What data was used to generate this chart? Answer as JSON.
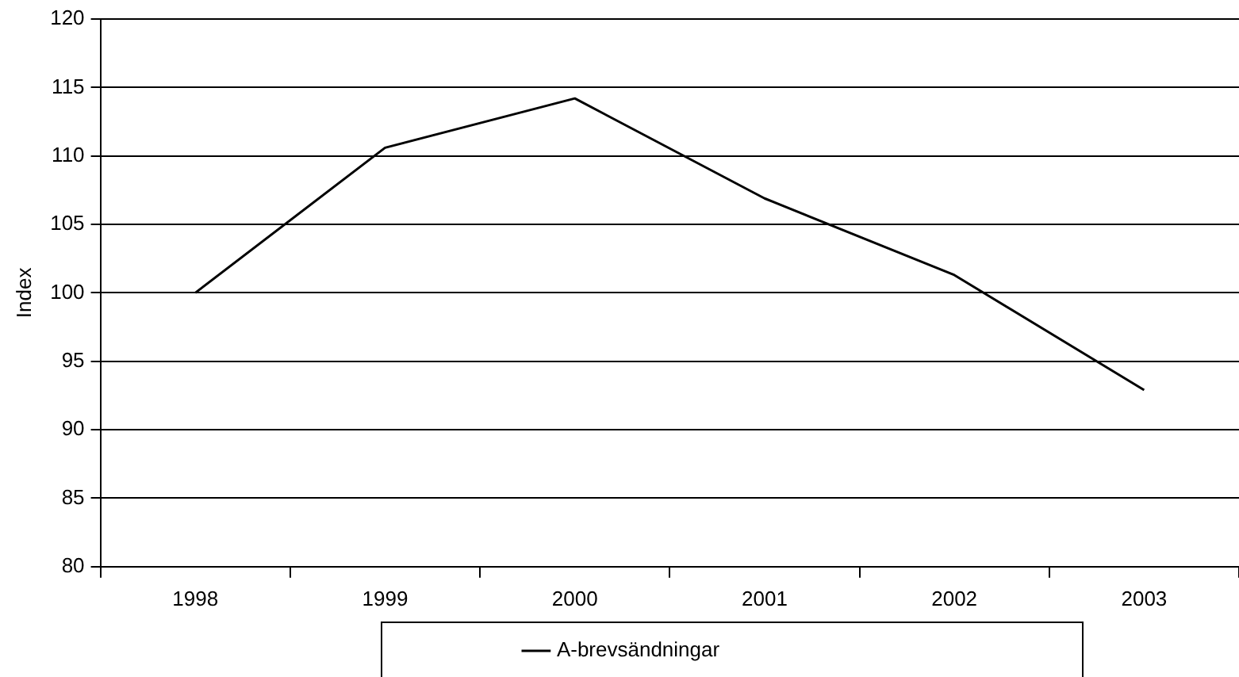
{
  "chart_data": {
    "type": "line",
    "ylabel": "Index",
    "categories": [
      "1998",
      "1999",
      "2000",
      "2001",
      "2002",
      "2003"
    ],
    "series": [
      {
        "name": "A-brevsändningar",
        "color": "#000000",
        "values": [
          100,
          110.6,
          114.2,
          106.9,
          101.3,
          92.9
        ]
      }
    ],
    "ylim": [
      80,
      120
    ],
    "yticks": [
      80,
      85,
      90,
      95,
      100,
      105,
      110,
      115,
      120
    ],
    "grid": "y",
    "legend": "bottom",
    "marker": "none"
  }
}
